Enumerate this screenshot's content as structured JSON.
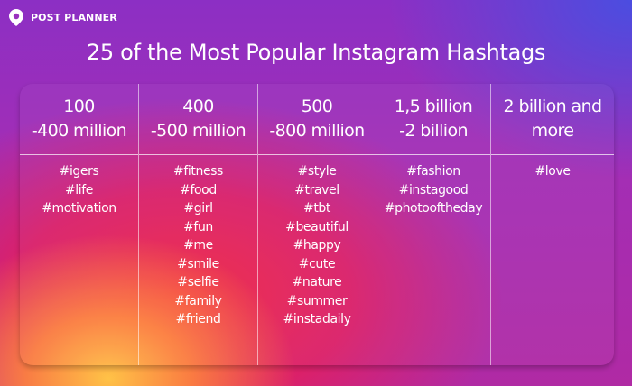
{
  "brand": {
    "name": "POST PLANNER"
  },
  "title": "25 of the Most Popular Instagram Hashtags",
  "columns": [
    {
      "line1": "100",
      "line2": "-400 million",
      "tags": [
        "#igers",
        "#life",
        "#motivation"
      ]
    },
    {
      "line1": "400",
      "line2": "-500 million",
      "tags": [
        "#fitness",
        "#food",
        "#girl",
        "#fun",
        "#me",
        "#smile",
        "#selfie",
        "#family",
        "#friend"
      ]
    },
    {
      "line1": "500",
      "line2": "-800 million",
      "tags": [
        "#style",
        "#travel",
        "#tbt",
        "#beautiful",
        "#happy",
        "#cute",
        "#nature",
        "#summer",
        "#instadaily"
      ]
    },
    {
      "line1": "1,5 billion",
      "line2": "-2 billion",
      "tags": [
        "#fashion",
        "#instagood",
        "#photooftheday"
      ]
    },
    {
      "line1": "2 billion and",
      "line2": "more",
      "tags": [
        "#love"
      ]
    }
  ]
}
